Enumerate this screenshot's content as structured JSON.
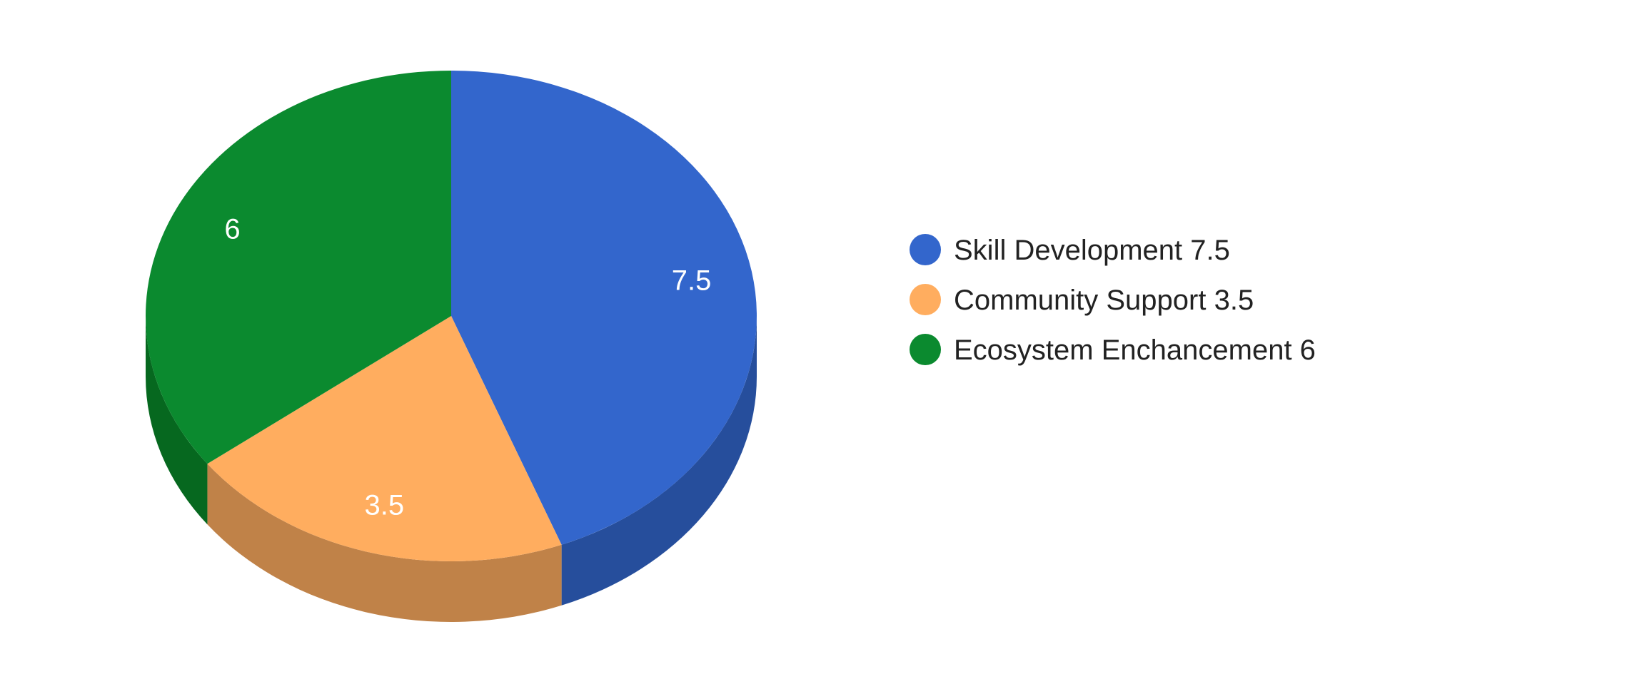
{
  "chart_data": {
    "type": "pie",
    "style": "3d",
    "categories": [
      "Skill Development",
      "Community Support",
      "Ecosystem Enchancement"
    ],
    "values": [
      7.5,
      3.5,
      6
    ],
    "value_labels": [
      "7.5",
      "3.5",
      "6"
    ],
    "legend_labels": [
      "Skill Development 7.5",
      "Community Support 3.5",
      "Ecosystem Enchancement 6"
    ],
    "colors": [
      "#3366cc",
      "#ffad5f",
      "#0b8a2f"
    ],
    "side_colors": [
      "#264e9c",
      "#c08248",
      "#06681f"
    ],
    "legend_position": "right",
    "start_angle_deg": 0,
    "direction": "clockwise"
  }
}
